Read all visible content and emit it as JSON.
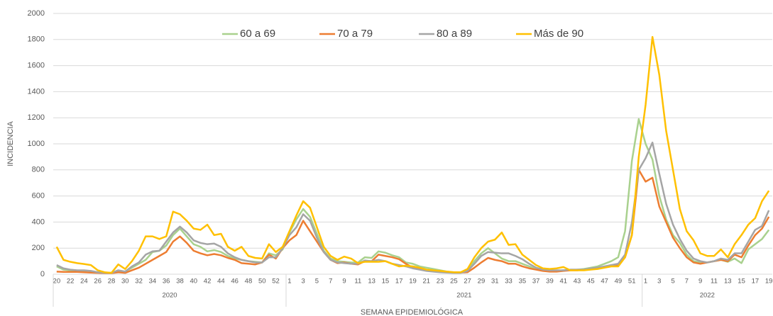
{
  "chart_data": {
    "type": "line",
    "y_label": "INCIDENCIA",
    "x_label": "SEMANA EPIDEMIOLÓGICA",
    "categories": [
      "20",
      null,
      "22",
      null,
      "24",
      null,
      "26",
      null,
      "28",
      null,
      "30",
      null,
      "32",
      null,
      "34",
      null,
      "36",
      null,
      "38",
      null,
      "40",
      null,
      "42",
      null,
      "44",
      null,
      "46",
      null,
      "48",
      null,
      "50",
      null,
      "52",
      null,
      "1",
      null,
      "3",
      null,
      "5",
      null,
      "7",
      null,
      "9",
      null,
      "11",
      null,
      "13",
      null,
      "15",
      null,
      "17",
      null,
      "19",
      null,
      "21",
      null,
      "23",
      null,
      "25",
      null,
      "27",
      null,
      "29",
      null,
      "31",
      null,
      "33",
      null,
      "35",
      null,
      "37",
      null,
      "39",
      null,
      "41",
      null,
      "43",
      null,
      "45",
      null,
      "47",
      null,
      "49",
      null,
      "51",
      null,
      "1",
      null,
      "3",
      null,
      "5",
      null,
      "7",
      null,
      "9",
      null,
      "11",
      null,
      "13",
      null,
      "15",
      null,
      "17",
      null,
      "19"
    ],
    "x_groups": [
      {
        "label": "2020",
        "size": 34
      },
      {
        "label": "2021",
        "size": 52
      },
      {
        "label": "2022",
        "size": 19
      }
    ],
    "series": [
      {
        "name": "60 a 69",
        "color": "#a9d18e",
        "values": [
          60,
          35,
          30,
          28,
          25,
          20,
          15,
          12,
          10,
          15,
          20,
          50,
          80,
          110,
          170,
          180,
          220,
          300,
          350,
          290,
          230,
          210,
          175,
          185,
          170,
          140,
          120,
          110,
          100,
          95,
          90,
          160,
          145,
          190,
          320,
          420,
          500,
          440,
          310,
          180,
          120,
          100,
          95,
          90,
          90,
          130,
          125,
          175,
          165,
          145,
          130,
          90,
          80,
          60,
          50,
          40,
          30,
          20,
          15,
          15,
          30,
          100,
          160,
          200,
          160,
          120,
          100,
          100,
          80,
          60,
          40,
          30,
          25,
          25,
          30,
          30,
          35,
          40,
          50,
          60,
          80,
          100,
          130,
          330,
          870,
          1190,
          1000,
          880,
          600,
          420,
          300,
          240,
          150,
          100,
          90,
          90,
          100,
          110,
          95,
          120,
          85,
          190,
          230,
          270,
          340
        ]
      },
      {
        "name": "70 a 79",
        "color": "#ed7d31",
        "values": [
          20,
          18,
          18,
          18,
          15,
          12,
          10,
          8,
          8,
          15,
          10,
          30,
          50,
          80,
          110,
          140,
          170,
          250,
          290,
          240,
          180,
          160,
          145,
          155,
          145,
          125,
          110,
          85,
          80,
          75,
          90,
          150,
          120,
          200,
          260,
          300,
          410,
          330,
          250,
          170,
          110,
          85,
          90,
          80,
          75,
          100,
          100,
          150,
          140,
          130,
          115,
          80,
          50,
          40,
          35,
          25,
          20,
          15,
          12,
          12,
          15,
          50,
          90,
          125,
          110,
          100,
          80,
          80,
          60,
          45,
          35,
          25,
          20,
          20,
          25,
          30,
          30,
          35,
          40,
          50,
          55,
          70,
          65,
          130,
          300,
          800,
          710,
          740,
          520,
          400,
          280,
          200,
          130,
          90,
          80,
          90,
          100,
          110,
          100,
          150,
          130,
          220,
          300,
          350,
          440
        ]
      },
      {
        "name": "80 a 89",
        "color": "#a5a5a5",
        "values": [
          70,
          45,
          35,
          30,
          30,
          25,
          15,
          10,
          10,
          30,
          20,
          60,
          90,
          150,
          175,
          180,
          250,
          320,
          365,
          320,
          260,
          240,
          230,
          235,
          210,
          160,
          130,
          110,
          100,
          90,
          90,
          130,
          130,
          200,
          300,
          360,
          460,
          410,
          280,
          170,
          110,
          90,
          85,
          80,
          80,
          105,
          100,
          110,
          100,
          80,
          70,
          60,
          45,
          35,
          25,
          20,
          15,
          12,
          10,
          10,
          25,
          80,
          140,
          170,
          165,
          160,
          160,
          140,
          115,
          80,
          50,
          35,
          30,
          30,
          30,
          35,
          35,
          35,
          45,
          50,
          60,
          70,
          80,
          150,
          400,
          800,
          890,
          1010,
          770,
          540,
          380,
          270,
          180,
          120,
          100,
          90,
          100,
          120,
          110,
          160,
          160,
          250,
          340,
          370,
          490
        ]
      },
      {
        "name": "Más de 90",
        "color": "#ffc000",
        "values": [
          210,
          110,
          95,
          85,
          78,
          70,
          30,
          15,
          10,
          75,
          40,
          100,
          180,
          290,
          290,
          270,
          290,
          480,
          460,
          410,
          350,
          340,
          380,
          300,
          310,
          210,
          180,
          210,
          140,
          125,
          120,
          230,
          170,
          210,
          330,
          450,
          560,
          510,
          360,
          210,
          140,
          110,
          135,
          120,
          85,
          95,
          95,
          95,
          100,
          80,
          60,
          65,
          60,
          50,
          35,
          30,
          25,
          20,
          15,
          15,
          40,
          130,
          200,
          250,
          265,
          320,
          225,
          230,
          150,
          110,
          70,
          45,
          40,
          45,
          55,
          30,
          30,
          30,
          35,
          40,
          50,
          60,
          60,
          130,
          300,
          900,
          1300,
          1820,
          1530,
          1100,
          800,
          500,
          330,
          260,
          160,
          140,
          140,
          190,
          130,
          230,
          300,
          380,
          430,
          560,
          640
        ]
      }
    ],
    "ylim": [
      0,
      2000
    ],
    "yticks": [
      0,
      200,
      400,
      600,
      800,
      1000,
      1200,
      1400,
      1600,
      1800,
      2000
    ],
    "grid": true,
    "legend": "top"
  }
}
